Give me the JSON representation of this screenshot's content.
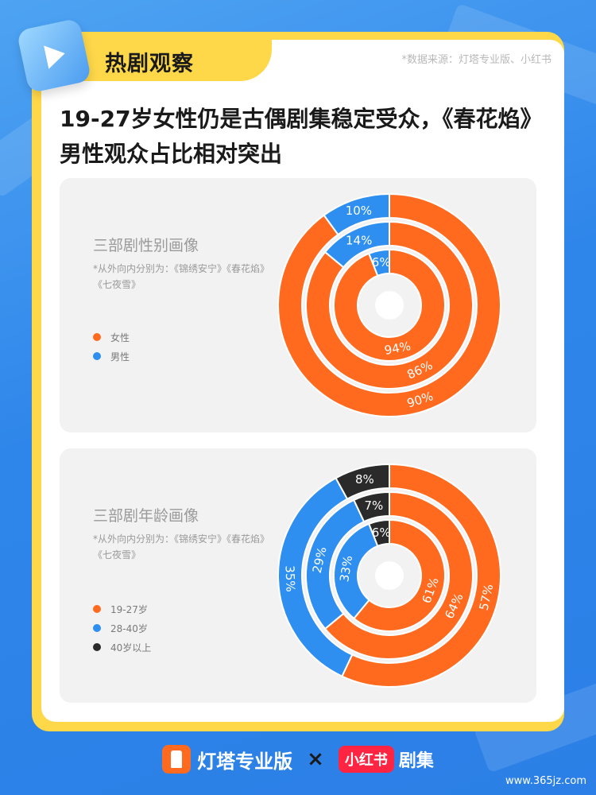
{
  "header": {
    "tab_title": "热剧观察",
    "source": "*数据来源：灯塔专业版、小红书"
  },
  "headline": "19-27岁女性仍是古偶剧集稳定受众，《春花焰》男性观众占比相对突出",
  "colors": {
    "orange": "#ff6a1f",
    "blue": "#2e8ff0",
    "black": "#2a2a2a"
  },
  "chart_data": [
    {
      "type": "pie",
      "subtype": "nested-donut",
      "title": "三部剧性别画像",
      "note": "*从外向内分别为：《锦绣安宁》《春花焰》《七夜雪》",
      "categories": [
        "女性",
        "男性"
      ],
      "rings": [
        {
          "name": "锦绣安宁",
          "values": [
            90,
            10
          ],
          "labels": [
            "90%",
            "10%"
          ]
        },
        {
          "name": "春花焰",
          "values": [
            86,
            14
          ],
          "labels": [
            "86%",
            "14%"
          ]
        },
        {
          "name": "七夜雪",
          "values": [
            94,
            6
          ],
          "labels": [
            "94%",
            "6%"
          ]
        }
      ]
    },
    {
      "type": "pie",
      "subtype": "nested-donut",
      "title": "三部剧年龄画像",
      "note": "*从外向内分别为：《锦绣安宁》《春花焰》《七夜雪》",
      "categories": [
        "19-27岁",
        "28-40岁",
        "40岁以上"
      ],
      "rings": [
        {
          "name": "锦绣安宁",
          "values": [
            57,
            35,
            8
          ],
          "labels": [
            "57%",
            "35%",
            "8%"
          ]
        },
        {
          "name": "春花焰",
          "values": [
            64,
            29,
            7
          ],
          "labels": [
            "64%",
            "29%",
            "7%"
          ]
        },
        {
          "name": "七夜雪",
          "values": [
            61,
            33,
            6
          ],
          "labels": [
            "61%",
            "33%",
            "6%"
          ]
        }
      ]
    }
  ],
  "footer": {
    "brand1": "灯塔专业版",
    "cross": "×",
    "brand2_badge": "小红书",
    "brand2_text": "剧集"
  },
  "watermark": "www.365jz.com"
}
